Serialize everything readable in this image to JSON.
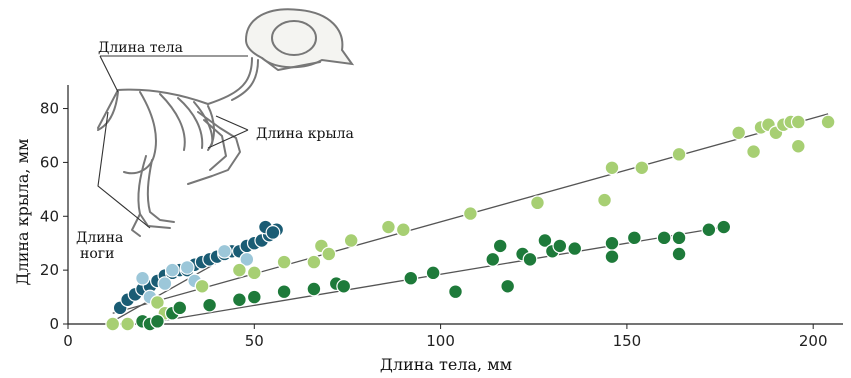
{
  "chart_data": {
    "type": "scatter",
    "title": "",
    "xlabel": "Длина тела, мм",
    "ylabel": "Длина крыла, мм",
    "xlim": [
      0,
      208
    ],
    "ylim": [
      0,
      88
    ],
    "xticks": [
      0,
      50,
      100,
      150,
      200
    ],
    "yticks": [
      0,
      20,
      40,
      60,
      80
    ],
    "grid": false,
    "legend": "none",
    "annotations": [
      "Длина тела",
      "Длина крыла",
      "Длина",
      "ноги"
    ],
    "series": [
      {
        "color": "#1a5c74",
        "points": [
          [
            14,
            6
          ],
          [
            16,
            9
          ],
          [
            18,
            11
          ],
          [
            20,
            13
          ],
          [
            22,
            14
          ],
          [
            24,
            16
          ],
          [
            26,
            18
          ],
          [
            28,
            19
          ],
          [
            30,
            20
          ],
          [
            32,
            20
          ],
          [
            34,
            22
          ],
          [
            36,
            23
          ],
          [
            38,
            24
          ],
          [
            40,
            25
          ],
          [
            42,
            26
          ],
          [
            44,
            27
          ],
          [
            46,
            27
          ],
          [
            48,
            29
          ],
          [
            50,
            30
          ],
          [
            52,
            31
          ],
          [
            54,
            33
          ],
          [
            56,
            35
          ],
          [
            53,
            36
          ],
          [
            55,
            34
          ]
        ]
      },
      {
        "color": "#9cc7d9",
        "points": [
          [
            20,
            17
          ],
          [
            22,
            10
          ],
          [
            26,
            15
          ],
          [
            28,
            20
          ],
          [
            32,
            21
          ],
          [
            34,
            16
          ],
          [
            36,
            14
          ],
          [
            42,
            27
          ],
          [
            48,
            24
          ]
        ]
      },
      {
        "color": "#a7cf73",
        "points": [
          [
            12,
            0
          ],
          [
            16,
            0
          ],
          [
            24,
            8
          ],
          [
            26,
            4
          ],
          [
            36,
            14
          ],
          [
            46,
            20
          ],
          [
            50,
            19
          ],
          [
            58,
            23
          ],
          [
            66,
            23
          ],
          [
            68,
            29
          ],
          [
            70,
            26
          ],
          [
            76,
            31
          ],
          [
            86,
            36
          ],
          [
            90,
            35
          ],
          [
            108,
            41
          ],
          [
            126,
            45
          ],
          [
            144,
            46
          ],
          [
            146,
            58
          ],
          [
            154,
            58
          ],
          [
            164,
            63
          ],
          [
            180,
            71
          ],
          [
            184,
            64
          ],
          [
            186,
            73
          ],
          [
            188,
            74
          ],
          [
            190,
            71
          ],
          [
            192,
            74
          ],
          [
            194,
            75
          ],
          [
            196,
            66
          ],
          [
            196,
            75
          ],
          [
            204,
            75
          ]
        ]
      },
      {
        "color": "#1e7a3a",
        "points": [
          [
            20,
            1
          ],
          [
            22,
            0
          ],
          [
            24,
            1
          ],
          [
            28,
            4
          ],
          [
            30,
            6
          ],
          [
            38,
            7
          ],
          [
            46,
            9
          ],
          [
            50,
            10
          ],
          [
            58,
            12
          ],
          [
            66,
            13
          ],
          [
            72,
            15
          ],
          [
            74,
            14
          ],
          [
            92,
            17
          ],
          [
            98,
            19
          ],
          [
            104,
            12
          ],
          [
            114,
            24
          ],
          [
            116,
            29
          ],
          [
            118,
            14
          ],
          [
            122,
            26
          ],
          [
            124,
            24
          ],
          [
            128,
            31
          ],
          [
            130,
            27
          ],
          [
            132,
            29
          ],
          [
            136,
            28
          ],
          [
            146,
            25
          ],
          [
            146,
            30
          ],
          [
            152,
            32
          ],
          [
            160,
            32
          ],
          [
            164,
            26
          ],
          [
            164,
            32
          ],
          [
            172,
            35
          ],
          [
            176,
            36
          ]
        ]
      }
    ],
    "trend_lines": [
      {
        "color": "#555555",
        "points": [
          [
            12,
            1
          ],
          [
            57,
            36
          ]
        ]
      },
      {
        "color": "#555555",
        "points": [
          [
            12,
            4
          ],
          [
            204,
            78
          ]
        ]
      },
      {
        "color": "#555555",
        "points": [
          [
            20,
            0
          ],
          [
            176,
            36
          ]
        ]
      }
    ]
  }
}
